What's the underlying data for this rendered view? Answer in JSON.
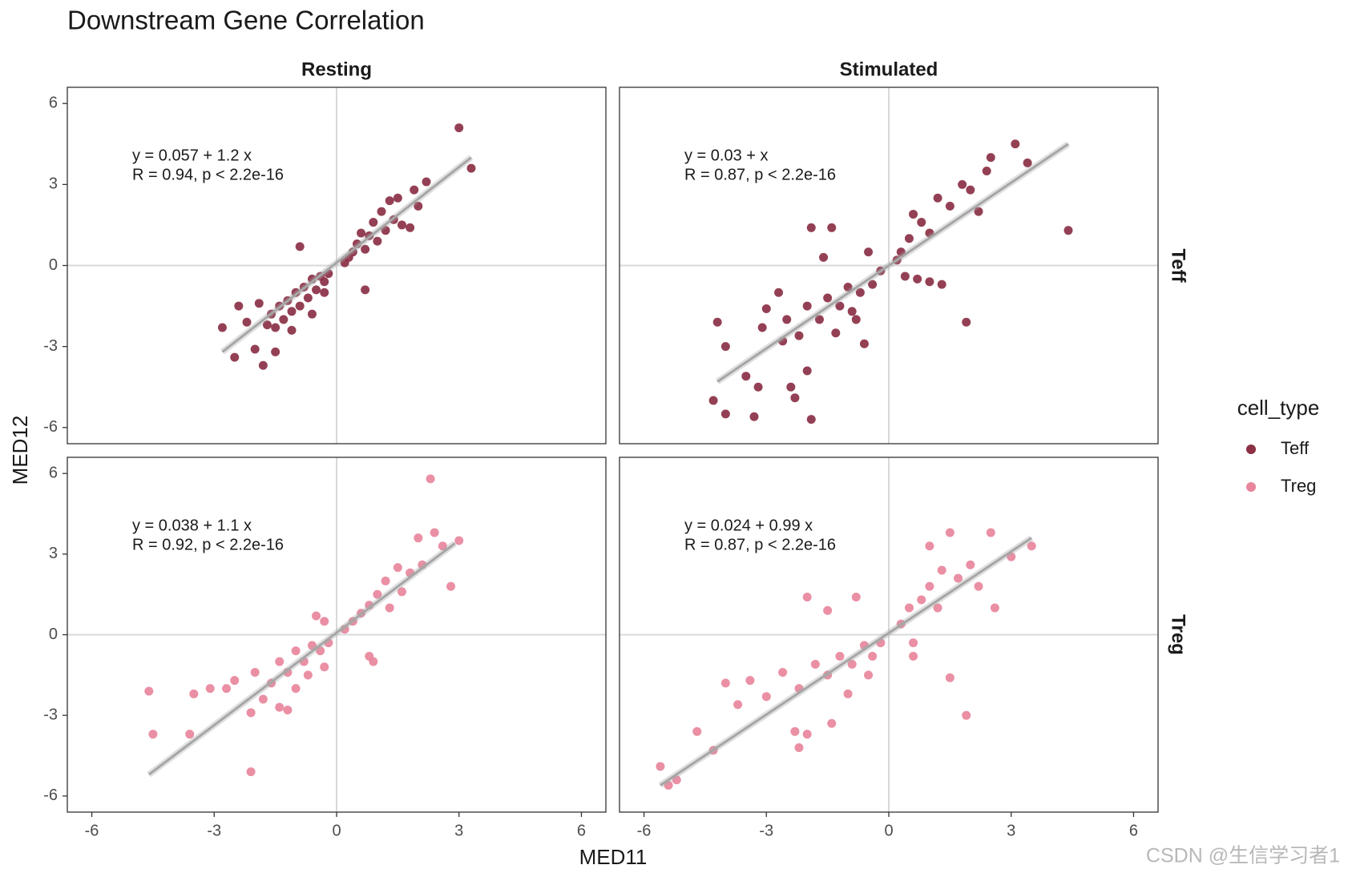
{
  "title": "Downstream Gene Correlation",
  "x_label": "MED11",
  "y_label": "MED12",
  "legend_title": "cell_type",
  "facet_columns": [
    "Resting",
    "Stimulated"
  ],
  "watermark": "CSDN @生信学习者1",
  "axes": {
    "xlim": [
      -6.6,
      6.6
    ],
    "ylim": [
      -6.6,
      6.6
    ],
    "xticks": [
      -6,
      -3,
      0,
      3,
      6
    ],
    "yticks": [
      -6,
      -3,
      0,
      3,
      6
    ]
  },
  "chart_data": [
    {
      "type": "scatter",
      "annotation": [
        "y = 0.057 + 1.2 x",
        "R = 0.94, p < 2.2e-16"
      ],
      "ref_lines": {
        "x": 0,
        "y": 0
      },
      "fit": {
        "x": [
          -2.8,
          3.3
        ],
        "y": [
          -3.2,
          4.0
        ],
        "color": "#a6a6a6"
      },
      "x": [
        3.0,
        3.3,
        2.2,
        2.0,
        1.8,
        0.7,
        -0.9,
        -2.8,
        -2.5,
        -1.8,
        -2.0,
        -1.5,
        -2.4,
        -1.7,
        1.9,
        1.5,
        1.3,
        1.1,
        1.4,
        1.6,
        1.2,
        0.9,
        0.8,
        0.6,
        0.5,
        0.4,
        0.3,
        0.7,
        1.0,
        0.2,
        -0.2,
        -0.3,
        -0.4,
        -0.5,
        -0.6,
        -0.7,
        -0.8,
        -0.9,
        -1.0,
        -1.1,
        -1.2,
        -1.3,
        -1.4,
        -1.5,
        -1.6,
        -1.9,
        -2.2,
        -1.1,
        -0.6,
        -0.3
      ],
      "series": [
        {
          "name": "Teff",
          "color": "#8b3045",
          "values": [
            5.1,
            3.6,
            3.1,
            2.2,
            1.4,
            -0.9,
            0.7,
            -2.3,
            -3.4,
            -3.7,
            -3.1,
            -3.2,
            -1.5,
            -2.2,
            2.8,
            2.5,
            2.4,
            2.0,
            1.7,
            1.5,
            1.3,
            1.6,
            1.1,
            1.2,
            0.8,
            0.5,
            0.3,
            0.6,
            0.9,
            0.1,
            -0.3,
            -0.6,
            -0.4,
            -0.9,
            -0.5,
            -1.2,
            -0.8,
            -1.5,
            -1.0,
            -1.7,
            -1.3,
            -2.0,
            -1.5,
            -2.3,
            -1.8,
            -1.4,
            -2.1,
            -2.4,
            -1.8,
            -1.0
          ]
        }
      ]
    },
    {
      "type": "scatter",
      "annotation": [
        "y = 0.03 +  x",
        "R = 0.87, p < 2.2e-16"
      ],
      "ref_lines": {
        "x": 0,
        "y": 0
      },
      "fit": {
        "x": [
          -4.2,
          4.4
        ],
        "y": [
          -4.3,
          4.5
        ],
        "color": "#a6a6a6"
      },
      "x": [
        4.4,
        3.4,
        3.1,
        2.5,
        2.4,
        1.9,
        1.3,
        -1.9,
        -4.3,
        -4.0,
        -3.3,
        -3.2,
        -3.5,
        -4.0,
        -4.2,
        -2.4,
        -2.3,
        -1.9,
        -1.4,
        -1.6,
        -0.8,
        -0.6,
        -2.0,
        -3.0,
        -3.1,
        -2.7,
        -2.5,
        -2.6,
        2.0,
        1.8,
        1.5,
        1.2,
        2.2,
        0.8,
        0.6,
        0.5,
        0.3,
        1.0,
        0.4,
        0.7,
        1.0,
        0.2,
        -0.2,
        -0.4,
        -0.5,
        -0.7,
        -1.0,
        -1.2,
        -1.5,
        -1.7,
        -2.0,
        -1.3,
        -2.2,
        -0.9
      ],
      "series": [
        {
          "name": "Teff",
          "color": "#8b3045",
          "values": [
            1.3,
            3.8,
            4.5,
            4.0,
            3.5,
            -2.1,
            -0.7,
            -5.7,
            -5.0,
            -5.5,
            -5.6,
            -4.5,
            -4.1,
            -3.0,
            -2.1,
            -4.5,
            -4.9,
            1.4,
            1.4,
            0.3,
            -2.0,
            -2.9,
            -3.9,
            -1.6,
            -2.3,
            -1.0,
            -2.0,
            -2.8,
            2.8,
            3.0,
            2.2,
            2.5,
            2.0,
            1.6,
            1.9,
            1.0,
            0.5,
            1.2,
            -0.4,
            -0.5,
            -0.6,
            0.2,
            -0.2,
            -0.7,
            0.5,
            -1.0,
            -0.8,
            -1.5,
            -1.2,
            -2.0,
            -1.5,
            -2.5,
            -2.6,
            -1.7
          ]
        }
      ]
    },
    {
      "type": "scatter",
      "annotation": [
        "y = 0.038 + 1.1 x",
        "R = 0.92, p < 2.2e-16"
      ],
      "ref_lines": {
        "x": 0,
        "y": 0
      },
      "fit": {
        "x": [
          -4.6,
          2.9
        ],
        "y": [
          -5.2,
          3.4
        ],
        "color": "#a6a6a6"
      },
      "x": [
        2.3,
        2.4,
        2.6,
        3.0,
        2.8,
        2.0,
        -4.6,
        -4.5,
        -3.6,
        -3.5,
        -3.1,
        -2.7,
        -2.5,
        -2.1,
        -2.1,
        -1.8,
        -2.0,
        -1.4,
        -1.2,
        0.8,
        0.9,
        2.1,
        1.8,
        1.5,
        1.2,
        1.6,
        1.0,
        0.8,
        0.6,
        0.4,
        0.2,
        1.3,
        -0.5,
        -0.3,
        -0.2,
        -0.4,
        -0.6,
        -0.8,
        -1.0,
        -1.2,
        -1.4,
        -1.6,
        -0.7,
        -1.0,
        -0.3
      ],
      "series": [
        {
          "name": "Treg",
          "color": "#e8869c",
          "values": [
            5.8,
            3.8,
            3.3,
            3.5,
            1.8,
            3.6,
            -2.1,
            -3.7,
            -3.7,
            -2.2,
            -2.0,
            -2.0,
            -1.7,
            -5.1,
            -2.9,
            -2.4,
            -1.4,
            -2.7,
            -2.8,
            -0.8,
            -1.0,
            2.6,
            2.3,
            2.5,
            2.0,
            1.6,
            1.5,
            1.1,
            0.8,
            0.5,
            0.2,
            1.0,
            0.7,
            0.5,
            -0.3,
            -0.6,
            -0.4,
            -1.0,
            -0.6,
            -1.4,
            -1.0,
            -1.8,
            -1.5,
            -2.0,
            -1.2
          ]
        }
      ]
    },
    {
      "type": "scatter",
      "annotation": [
        "y = 0.024 + 0.99 x",
        "R = 0.87, p < 2.2e-16"
      ],
      "ref_lines": {
        "x": 0,
        "y": 0
      },
      "fit": {
        "x": [
          -5.6,
          3.5
        ],
        "y": [
          -5.6,
          3.6
        ],
        "color": "#a6a6a6"
      },
      "x": [
        -5.6,
        -5.4,
        -5.2,
        -4.7,
        -4.3,
        -4.0,
        -3.7,
        -3.4,
        -3.0,
        -2.3,
        -2.2,
        -2.0,
        -1.5,
        -0.8,
        -2.0,
        -1.4,
        1.5,
        1.0,
        2.5,
        3.5,
        2.6,
        1.9,
        1.5,
        0.6,
        3.0,
        2.0,
        1.7,
        1.3,
        1.0,
        0.8,
        0.5,
        0.3,
        1.2,
        0.6,
        2.2,
        -0.2,
        -0.4,
        -0.6,
        -0.9,
        -1.2,
        -1.5,
        -1.8,
        -2.2,
        -2.6,
        -1.0,
        -0.5
      ],
      "series": [
        {
          "name": "Treg",
          "color": "#e8869c",
          "values": [
            -4.9,
            -5.6,
            -5.4,
            -3.6,
            -4.3,
            -1.8,
            -2.6,
            -1.7,
            -2.3,
            -3.6,
            -4.2,
            1.4,
            0.9,
            1.4,
            -3.7,
            -3.3,
            3.8,
            3.3,
            3.8,
            3.3,
            1.0,
            -3.0,
            -1.6,
            -0.8,
            2.9,
            2.6,
            2.1,
            2.4,
            1.8,
            1.3,
            1.0,
            0.4,
            1.0,
            -0.3,
            1.8,
            -0.3,
            -0.8,
            -0.4,
            -1.1,
            -0.8,
            -1.5,
            -1.1,
            -2.0,
            -1.4,
            -2.2,
            -1.5
          ]
        }
      ]
    }
  ]
}
